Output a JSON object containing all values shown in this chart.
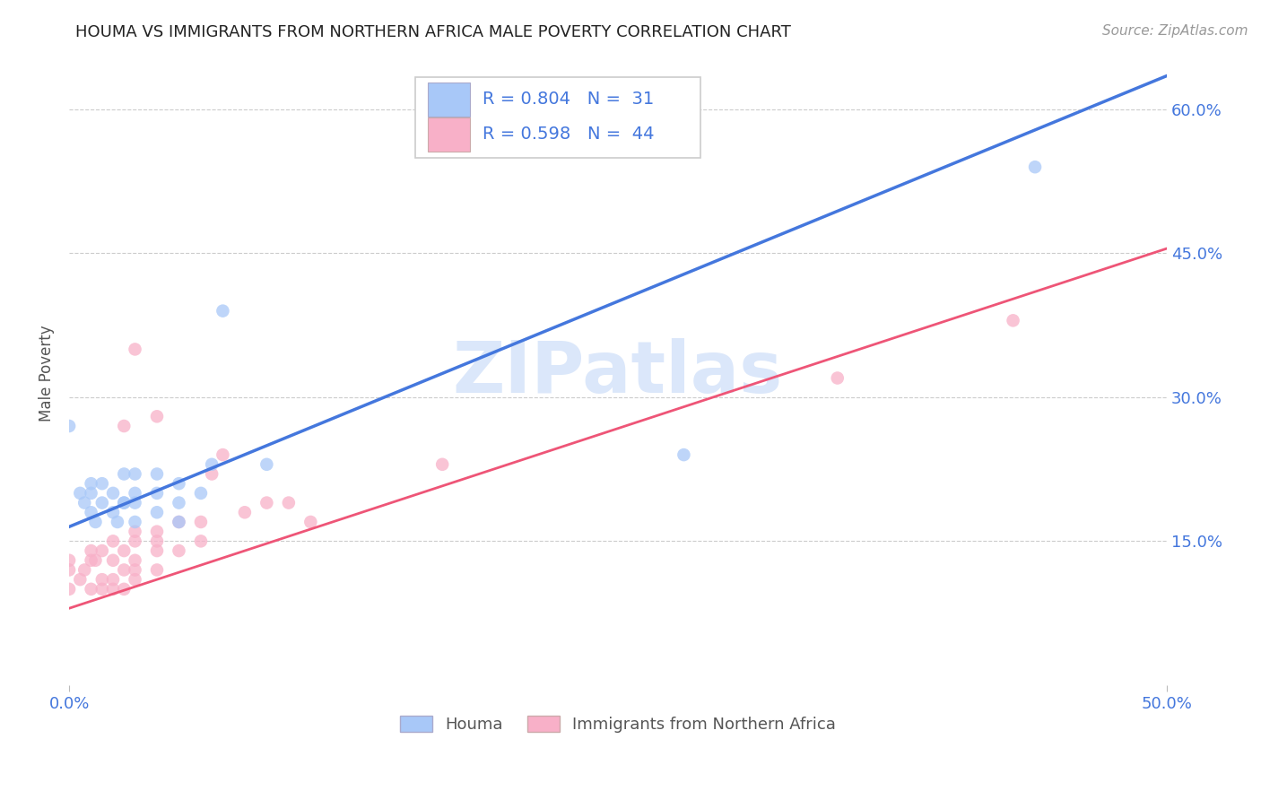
{
  "title": "HOUMA VS IMMIGRANTS FROM NORTHERN AFRICA MALE POVERTY CORRELATION CHART",
  "source": "Source: ZipAtlas.com",
  "ylabel": "Male Poverty",
  "xlim": [
    0.0,
    0.5
  ],
  "ylim": [
    0.0,
    0.65
  ],
  "ytick_positions": [
    0.15,
    0.3,
    0.45,
    0.6
  ],
  "ytick_labels": [
    "15.0%",
    "30.0%",
    "45.0%",
    "60.0%"
  ],
  "legend_r1": "R = 0.804   N =  31",
  "legend_r2": "R = 0.598   N =  44",
  "houma_color": "#a8c8f8",
  "immigrants_color": "#f8b0c8",
  "houma_line_color": "#4477dd",
  "immigrants_line_color": "#ee5577",
  "legend_text_color": "#4477dd",
  "watermark_color": "#ccddf8",
  "houma_scatter_x": [
    0.0,
    0.005,
    0.007,
    0.01,
    0.01,
    0.01,
    0.012,
    0.015,
    0.015,
    0.02,
    0.02,
    0.022,
    0.025,
    0.025,
    0.025,
    0.03,
    0.03,
    0.03,
    0.03,
    0.04,
    0.04,
    0.04,
    0.05,
    0.05,
    0.05,
    0.06,
    0.065,
    0.07,
    0.09,
    0.28,
    0.44
  ],
  "houma_scatter_y": [
    0.27,
    0.2,
    0.19,
    0.18,
    0.2,
    0.21,
    0.17,
    0.19,
    0.21,
    0.18,
    0.2,
    0.17,
    0.19,
    0.22,
    0.19,
    0.17,
    0.19,
    0.2,
    0.22,
    0.18,
    0.2,
    0.22,
    0.17,
    0.19,
    0.21,
    0.2,
    0.23,
    0.39,
    0.23,
    0.24,
    0.54
  ],
  "immigrants_scatter_x": [
    0.0,
    0.0,
    0.0,
    0.005,
    0.007,
    0.01,
    0.01,
    0.01,
    0.012,
    0.015,
    0.015,
    0.015,
    0.02,
    0.02,
    0.02,
    0.02,
    0.025,
    0.025,
    0.025,
    0.025,
    0.03,
    0.03,
    0.03,
    0.03,
    0.03,
    0.03,
    0.04,
    0.04,
    0.04,
    0.04,
    0.04,
    0.05,
    0.05,
    0.06,
    0.06,
    0.065,
    0.07,
    0.08,
    0.09,
    0.1,
    0.11,
    0.17,
    0.35,
    0.43
  ],
  "immigrants_scatter_y": [
    0.1,
    0.12,
    0.13,
    0.11,
    0.12,
    0.1,
    0.13,
    0.14,
    0.13,
    0.1,
    0.11,
    0.14,
    0.1,
    0.11,
    0.13,
    0.15,
    0.1,
    0.12,
    0.14,
    0.27,
    0.11,
    0.12,
    0.13,
    0.15,
    0.16,
    0.35,
    0.12,
    0.14,
    0.15,
    0.16,
    0.28,
    0.14,
    0.17,
    0.15,
    0.17,
    0.22,
    0.24,
    0.18,
    0.19,
    0.19,
    0.17,
    0.23,
    0.32,
    0.38
  ],
  "houma_line_x": [
    0.0,
    0.5
  ],
  "houma_line_y": [
    0.165,
    0.635
  ],
  "immigrants_line_x": [
    0.0,
    0.5
  ],
  "immigrants_line_y": [
    0.08,
    0.455
  ],
  "background_color": "#ffffff",
  "grid_color": "#cccccc",
  "title_color": "#222222",
  "tick_color": "#4477dd"
}
